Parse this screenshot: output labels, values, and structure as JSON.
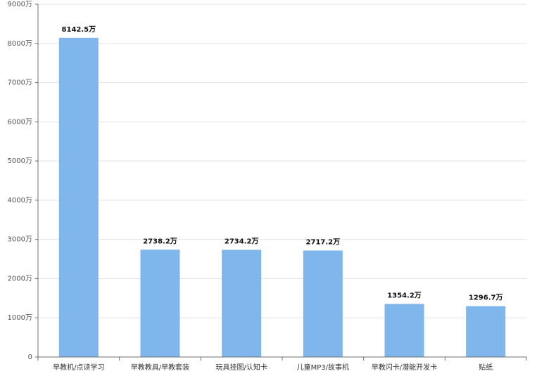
{
  "chart_data": {
    "type": "bar",
    "categories": [
      "早教机/点读学习",
      "早教教具/早教套装",
      "玩具挂图/认知卡",
      "儿童MP3/故事机",
      "早教闪卡/潜能开发卡",
      "贴纸"
    ],
    "values": [
      8142.5,
      2738.2,
      2734.2,
      2717.2,
      1354.2,
      1296.7
    ],
    "data_labels": [
      "8142.5万",
      "2738.2万",
      "2734.2万",
      "2717.2万",
      "1354.2万",
      "1296.7万"
    ],
    "y_ticks": [
      0,
      1000,
      2000,
      3000,
      4000,
      5000,
      6000,
      7000,
      8000,
      9000
    ],
    "y_tick_labels": [
      "0",
      "1000万",
      "2000万",
      "3000万",
      "4000万",
      "5000万",
      "6000万",
      "7000万",
      "8000万",
      "9000万"
    ],
    "ylim": [
      0,
      9000
    ],
    "grid": true,
    "bar_color": "#7fb6ec",
    "title": "",
    "xlabel": "",
    "ylabel": ""
  }
}
